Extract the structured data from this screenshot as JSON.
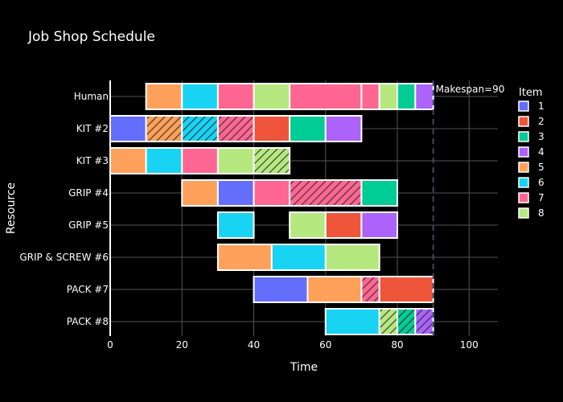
{
  "chart_data": {
    "type": "bar",
    "title": "Job Shop Schedule",
    "xlabel": "Time",
    "ylabel": "Resource",
    "xlim": [
      0,
      108
    ],
    "x_ticks": [
      0,
      20,
      40,
      60,
      80,
      100
    ],
    "grid": true,
    "legend": {
      "title": "Item",
      "placement": "right"
    },
    "makespan": {
      "value": 90,
      "label": "Makespan=90"
    },
    "colors": {
      "1": "#636efa",
      "2": "#ef553b",
      "3": "#00cc96",
      "4": "#ab63fa",
      "5": "#ffa15a",
      "6": "#19d3f3",
      "7": "#ff6692",
      "8": "#b6e880"
    },
    "items": [
      "1",
      "2",
      "3",
      "4",
      "5",
      "6",
      "7",
      "8"
    ],
    "resources": [
      "Human",
      "KIT #2",
      "KIT #3",
      "GRIP #4",
      "GRIP #5",
      "GRIP & SCREW #6",
      "PACK #7",
      "PACK #8"
    ],
    "tasks": [
      {
        "resource": "Human",
        "item": "5",
        "start": 10,
        "end": 20,
        "hatched": false
      },
      {
        "resource": "Human",
        "item": "6",
        "start": 20,
        "end": 30,
        "hatched": false
      },
      {
        "resource": "Human",
        "item": "7",
        "start": 30,
        "end": 40,
        "hatched": false
      },
      {
        "resource": "Human",
        "item": "8",
        "start": 40,
        "end": 50,
        "hatched": false
      },
      {
        "resource": "Human",
        "item": "7",
        "start": 50,
        "end": 70,
        "hatched": false
      },
      {
        "resource": "Human",
        "item": "7",
        "start": 70,
        "end": 75,
        "hatched": false
      },
      {
        "resource": "Human",
        "item": "8",
        "start": 75,
        "end": 80,
        "hatched": false
      },
      {
        "resource": "Human",
        "item": "3",
        "start": 80,
        "end": 85,
        "hatched": false
      },
      {
        "resource": "Human",
        "item": "4",
        "start": 85,
        "end": 90,
        "hatched": false
      },
      {
        "resource": "KIT #2",
        "item": "1",
        "start": 0,
        "end": 10,
        "hatched": false
      },
      {
        "resource": "KIT #2",
        "item": "5",
        "start": 10,
        "end": 20,
        "hatched": true
      },
      {
        "resource": "KIT #2",
        "item": "6",
        "start": 20,
        "end": 30,
        "hatched": true
      },
      {
        "resource": "KIT #2",
        "item": "7",
        "start": 30,
        "end": 40,
        "hatched": true
      },
      {
        "resource": "KIT #2",
        "item": "2",
        "start": 40,
        "end": 50,
        "hatched": false
      },
      {
        "resource": "KIT #2",
        "item": "3",
        "start": 50,
        "end": 60,
        "hatched": false
      },
      {
        "resource": "KIT #2",
        "item": "4",
        "start": 60,
        "end": 70,
        "hatched": false
      },
      {
        "resource": "KIT #3",
        "item": "5",
        "start": 0,
        "end": 10,
        "hatched": false
      },
      {
        "resource": "KIT #3",
        "item": "6",
        "start": 10,
        "end": 20,
        "hatched": false
      },
      {
        "resource": "KIT #3",
        "item": "7",
        "start": 20,
        "end": 30,
        "hatched": false
      },
      {
        "resource": "KIT #3",
        "item": "8",
        "start": 30,
        "end": 40,
        "hatched": false
      },
      {
        "resource": "KIT #3",
        "item": "8",
        "start": 40,
        "end": 50,
        "hatched": true
      },
      {
        "resource": "GRIP #4",
        "item": "5",
        "start": 20,
        "end": 30,
        "hatched": false
      },
      {
        "resource": "GRIP #4",
        "item": "1",
        "start": 30,
        "end": 40,
        "hatched": false
      },
      {
        "resource": "GRIP #4",
        "item": "7",
        "start": 40,
        "end": 50,
        "hatched": false
      },
      {
        "resource": "GRIP #4",
        "item": "7",
        "start": 50,
        "end": 70,
        "hatched": true
      },
      {
        "resource": "GRIP #4",
        "item": "3",
        "start": 70,
        "end": 80,
        "hatched": false
      },
      {
        "resource": "GRIP #5",
        "item": "6",
        "start": 30,
        "end": 40,
        "hatched": false
      },
      {
        "resource": "GRIP #5",
        "item": "8",
        "start": 50,
        "end": 60,
        "hatched": false
      },
      {
        "resource": "GRIP #5",
        "item": "2",
        "start": 60,
        "end": 70,
        "hatched": false
      },
      {
        "resource": "GRIP #5",
        "item": "4",
        "start": 70,
        "end": 80,
        "hatched": false
      },
      {
        "resource": "GRIP & SCREW #6",
        "item": "5",
        "start": 30,
        "end": 45,
        "hatched": false
      },
      {
        "resource": "GRIP & SCREW #6",
        "item": "6",
        "start": 45,
        "end": 60,
        "hatched": false
      },
      {
        "resource": "GRIP & SCREW #6",
        "item": "8",
        "start": 60,
        "end": 75,
        "hatched": false
      },
      {
        "resource": "PACK #7",
        "item": "1",
        "start": 40,
        "end": 55,
        "hatched": false
      },
      {
        "resource": "PACK #7",
        "item": "5",
        "start": 55,
        "end": 70,
        "hatched": false
      },
      {
        "resource": "PACK #7",
        "item": "7",
        "start": 70,
        "end": 75,
        "hatched": true
      },
      {
        "resource": "PACK #7",
        "item": "2",
        "start": 75,
        "end": 90,
        "hatched": false
      },
      {
        "resource": "PACK #8",
        "item": "6",
        "start": 60,
        "end": 75,
        "hatched": false
      },
      {
        "resource": "PACK #8",
        "item": "8",
        "start": 75,
        "end": 80,
        "hatched": true
      },
      {
        "resource": "PACK #8",
        "item": "3",
        "start": 80,
        "end": 85,
        "hatched": true
      },
      {
        "resource": "PACK #8",
        "item": "4",
        "start": 85,
        "end": 90,
        "hatched": true
      }
    ]
  }
}
